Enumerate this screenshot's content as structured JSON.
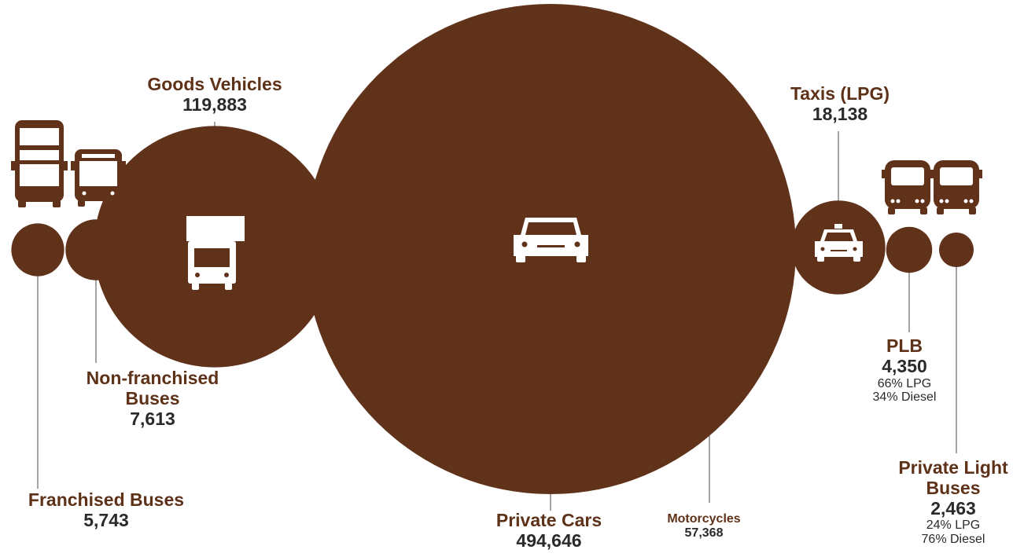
{
  "chart_data": {
    "type": "bubble",
    "accent_color": "#61321a",
    "series": [
      {
        "key": "franchised",
        "name": "Franchised Buses",
        "value": 5743,
        "value_label": "5,743",
        "icon": "double-decker-bus-icon"
      },
      {
        "key": "nonfranchised",
        "name": "Non-franchised Buses",
        "value": 7613,
        "value_label": "7,613",
        "icon": "single-deck-bus-icon"
      },
      {
        "key": "goods",
        "name": "Goods Vehicles",
        "value": 119883,
        "value_label": "119,883",
        "icon": "truck-icon"
      },
      {
        "key": "cars",
        "name": "Private Cars",
        "value": 494646,
        "value_label": "494,646",
        "icon": "car-icon"
      },
      {
        "key": "motorcycles",
        "name": "Motorcycles",
        "value": 57368,
        "value_label": "57,368"
      },
      {
        "key": "taxis",
        "name": "Taxis (LPG)",
        "value": 18138,
        "value_label": "18,138",
        "icon": "taxi-icon"
      },
      {
        "key": "plb",
        "name": "PLB",
        "value": 4350,
        "value_label": "4,350",
        "fuel": [
          "66% LPG",
          "34% Diesel"
        ],
        "icon": "minibus-icon"
      },
      {
        "key": "plbus",
        "name": "Private Light Buses",
        "name_lines": [
          "Private Light",
          "Buses"
        ],
        "value": 2463,
        "value_label": "2,463",
        "fuel": [
          "24% LPG",
          "76% Diesel"
        ],
        "icon": "minibus-icon"
      }
    ]
  }
}
